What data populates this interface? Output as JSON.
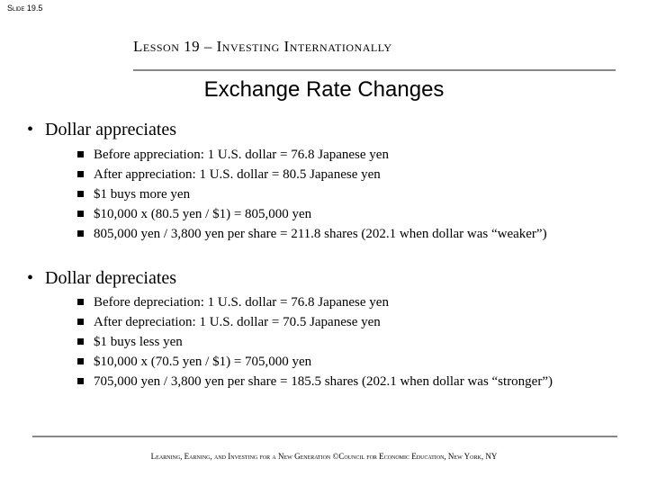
{
  "slide_label": "Slide 19.5",
  "lesson_title": "Lesson 19 – Investing Internationally",
  "slide_title": "Exchange Rate Changes",
  "sections": [
    {
      "heading": "Dollar appreciates",
      "bullets": [
        "Before appreciation: 1 U.S. dollar = 76.8 Japanese yen",
        "After appreciation: 1 U.S. dollar = 80.5 Japanese yen",
        "$1 buys more yen",
        "$10,000 x (80.5 yen / $1) = 805,000 yen",
        "805,000 yen / 3,800 yen per share = 211.8 shares (202.1 when dollar was “weaker”)"
      ]
    },
    {
      "heading": "Dollar depreciates",
      "bullets": [
        "Before depreciation: 1 U.S. dollar = 76.8 Japanese yen",
        "After depreciation: 1 U.S. dollar = 70.5 Japanese yen",
        "$1 buys less yen",
        "$10,000 x (70.5 yen / $1) = 705,000 yen",
        "705,000 yen / 3,800 yen per share = 185.5 shares (202.1 when dollar was “stronger”)"
      ]
    }
  ],
  "footer": "Learning, Earning, and Investing for a New Generation ©Council for Economic Education, New York, NY"
}
